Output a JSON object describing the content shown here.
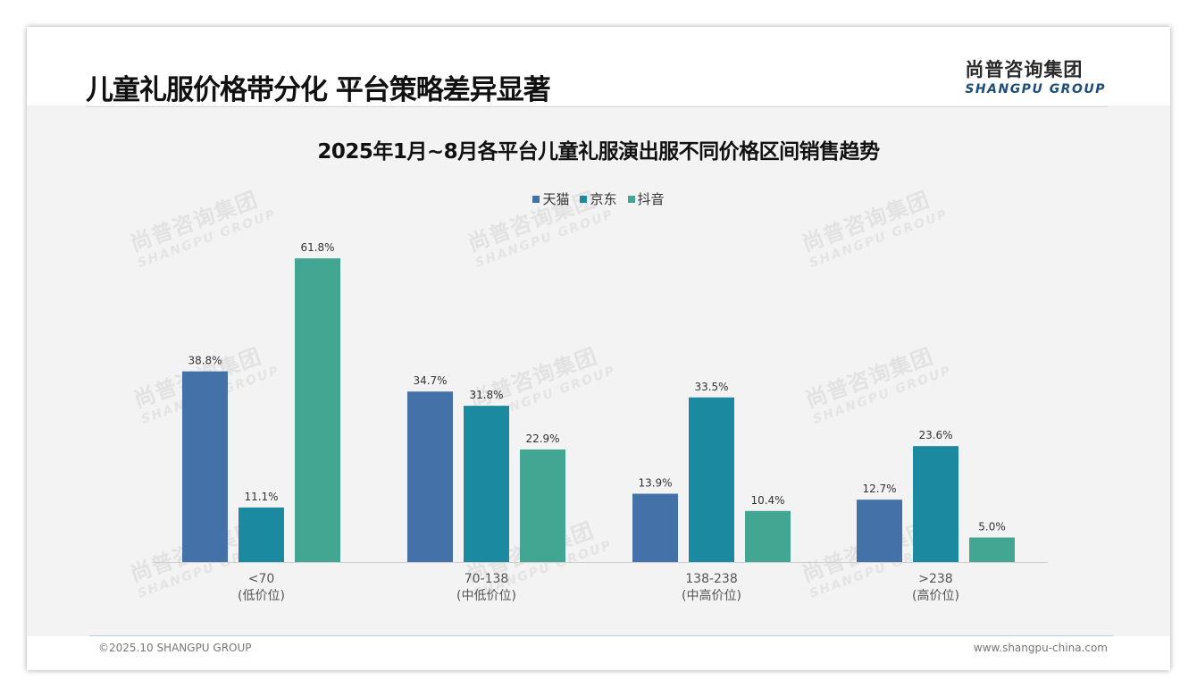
{
  "header": {
    "title": "儿童礼服价格带分化 平台策略差异显著",
    "logo_cn": "尚普咨询集团",
    "logo_en": "SHANGPU GROUP"
  },
  "watermark": {
    "cn": "尚普咨询集团",
    "en": "SHANGPU GROUP"
  },
  "chart_data": {
    "type": "bar",
    "title": "2025年1月~8月各平台儿童礼服演出服不同价格区间销售趋势",
    "categories": [
      "<70",
      "70-138",
      "138-238",
      ">238"
    ],
    "category_sublabels": [
      "(低价位)",
      "(中低价位)",
      "(中高价位)",
      "(高价位)"
    ],
    "series": [
      {
        "name": "天猫",
        "color": "#4472a8",
        "values": [
          38.8,
          34.7,
          13.9,
          12.7
        ]
      },
      {
        "name": "京东",
        "color": "#1b8aa1",
        "values": [
          11.1,
          31.8,
          33.5,
          23.6
        ]
      },
      {
        "name": "抖音",
        "color": "#42a692",
        "values": [
          61.8,
          22.9,
          10.4,
          5.0
        ]
      }
    ],
    "value_suffix": "%",
    "ylim": [
      0,
      70
    ],
    "grid": false,
    "legend_position": "top-center",
    "xlabel": "",
    "ylabel": ""
  },
  "footer": {
    "copyright": "©2025.10 SHANGPU GROUP",
    "website": "www.shangpu-china.com"
  }
}
